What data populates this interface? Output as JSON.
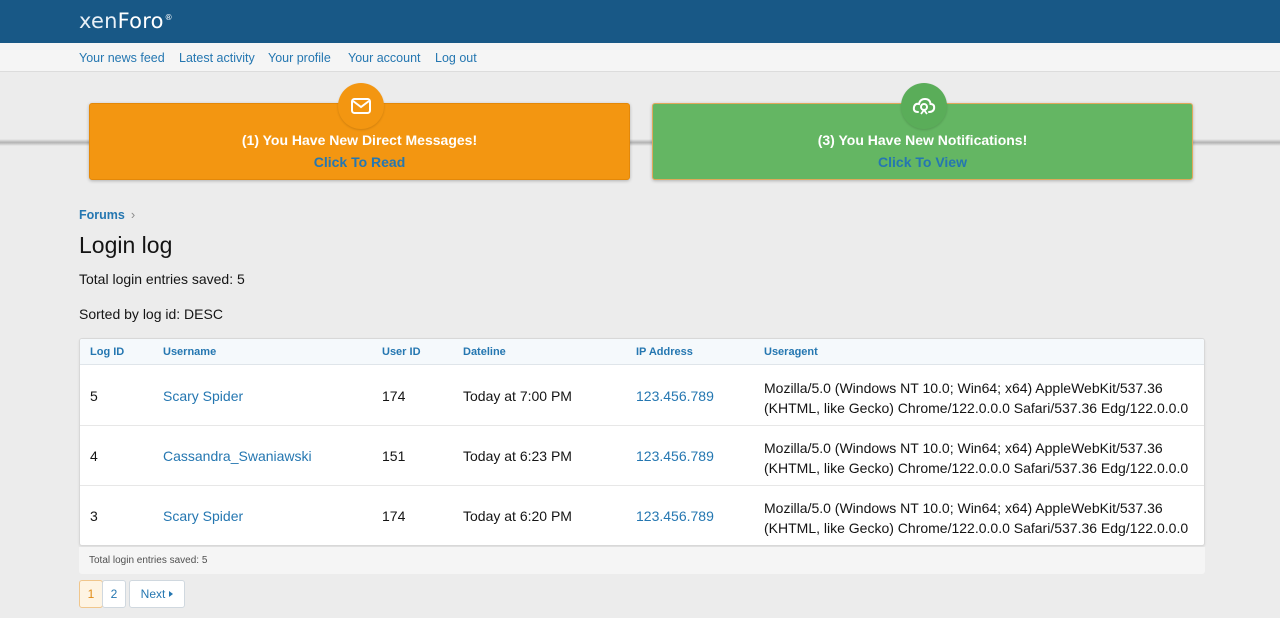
{
  "header": {
    "logo_prefix": "xen",
    "logo_suffix": "Foro",
    "logo_reg": "®"
  },
  "nav": {
    "items": [
      "Your news feed",
      "Latest activity",
      "Your profile",
      "Your account",
      "Log out"
    ]
  },
  "notices": {
    "messages": {
      "title": "(1)  You Have New Direct Messages!",
      "link": "Click To Read",
      "icon": "envelope-icon",
      "color": "#f39611"
    },
    "notifications": {
      "title": "(3)  You Have New Notifications!",
      "link": "Click To View",
      "icon": "cloud-badge-icon",
      "color": "#64b663"
    }
  },
  "breadcrumb": {
    "label": "Forums",
    "separator": "›"
  },
  "page": {
    "title": "Login log",
    "total_text": "Total login entries saved: 5",
    "sorted_text": "Sorted by log id: DESC"
  },
  "table": {
    "headers": [
      "Log ID",
      "Username",
      "User ID",
      "Dateline",
      "IP Address",
      "Useragent"
    ],
    "rows": [
      {
        "log_id": "5",
        "username": "Scary Spider",
        "user_id": "174",
        "dateline": "Today at 7:00 PM",
        "ip": "123.456.789",
        "ua_line1": "Mozilla/5.0 (Windows NT 10.0; Win64; x64) AppleWebKit/537.36",
        "ua_line2": "(KHTML, like Gecko) Chrome/122.0.0.0 Safari/537.36 Edg/122.0.0.0"
      },
      {
        "log_id": "4",
        "username": "Cassandra_Swaniawski",
        "user_id": "151",
        "dateline": "Today at 6:23 PM",
        "ip": "123.456.789",
        "ua_line1": "Mozilla/5.0 (Windows NT 10.0; Win64; x64) AppleWebKit/537.36",
        "ua_line2": "(KHTML, like Gecko) Chrome/122.0.0.0 Safari/537.36 Edg/122.0.0.0"
      },
      {
        "log_id": "3",
        "username": "Scary Spider",
        "user_id": "174",
        "dateline": "Today at 6:20 PM",
        "ip": "123.456.789",
        "ua_line1": "Mozilla/5.0 (Windows NT 10.0; Win64; x64) AppleWebKit/537.36",
        "ua_line2": "(KHTML, like Gecko) Chrome/122.0.0.0 Safari/537.36 Edg/122.0.0.0"
      }
    ],
    "footer_text": "Total login entries saved: 5"
  },
  "pagination": {
    "pages": [
      "1",
      "2"
    ],
    "current": "1",
    "next_label": "Next",
    "next_icon": "caret-right-icon"
  },
  "colors": {
    "header_bg": "#185886",
    "link": "#2577b1",
    "orange": "#f39611",
    "green": "#64b663"
  }
}
